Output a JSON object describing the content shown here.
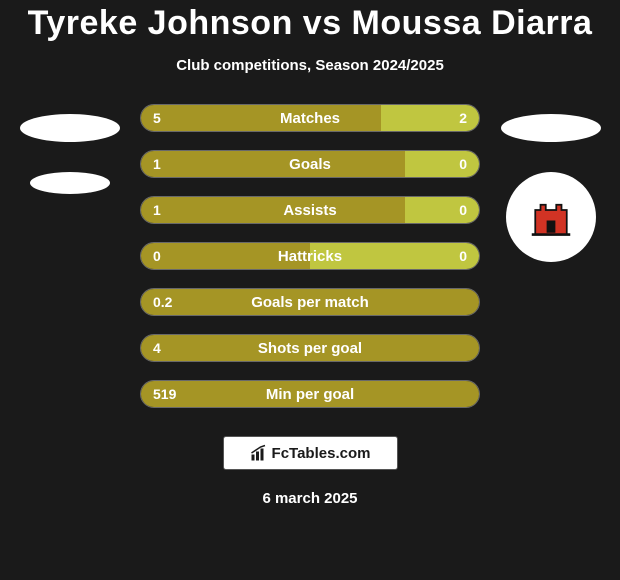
{
  "title": "Tyreke Johnson vs Moussa Diarra",
  "subtitle": "Club competitions, Season 2024/2025",
  "footer_text": "FcTables.com",
  "footer_date": "6 march 2025",
  "colors": {
    "background": "#1a1a1a",
    "left_bar": "#a59525",
    "right_bar": "#c0c640",
    "bar_border": "rgba(255,255,255,0.35)",
    "text": "#ffffff"
  },
  "left_badges": [
    {
      "type": "ellipse",
      "width": 100,
      "height": 28
    },
    {
      "type": "ellipse",
      "width": 80,
      "height": 22
    }
  ],
  "right_badges": [
    {
      "type": "ellipse",
      "width": 100,
      "height": 28
    },
    {
      "type": "tower"
    }
  ],
  "bars": [
    {
      "label": "Matches",
      "left": "5",
      "right": "2",
      "left_pct": 71,
      "right_pct": 29
    },
    {
      "label": "Goals",
      "left": "1",
      "right": "0",
      "left_pct": 78,
      "right_pct": 22
    },
    {
      "label": "Assists",
      "left": "1",
      "right": "0",
      "left_pct": 78,
      "right_pct": 22
    },
    {
      "label": "Hattricks",
      "left": "0",
      "right": "0",
      "left_pct": 50,
      "right_pct": 50
    },
    {
      "label": "Goals per match",
      "left": "0.2",
      "right": "",
      "left_pct": 100,
      "right_pct": 0
    },
    {
      "label": "Shots per goal",
      "left": "4",
      "right": "",
      "left_pct": 100,
      "right_pct": 0
    },
    {
      "label": "Min per goal",
      "left": "519",
      "right": "",
      "left_pct": 100,
      "right_pct": 0
    }
  ]
}
